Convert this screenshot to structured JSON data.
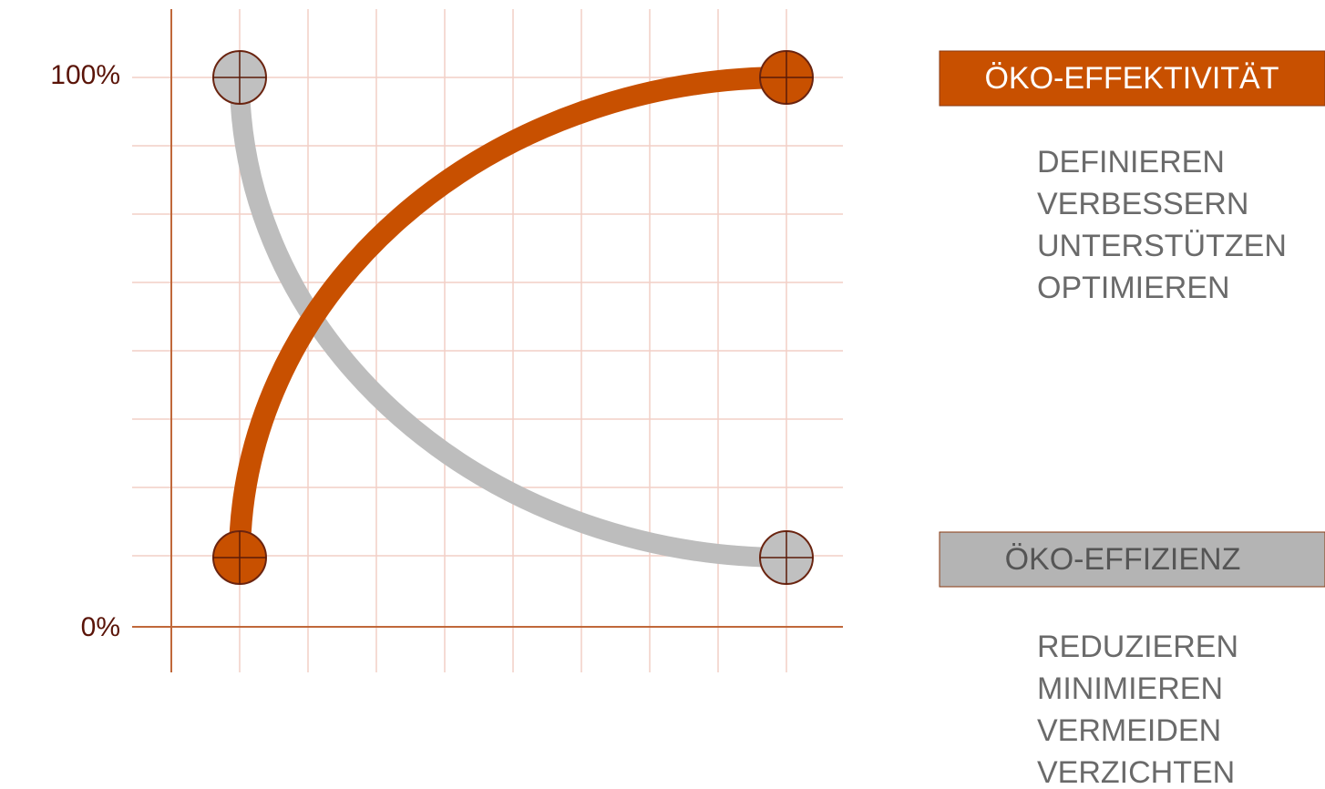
{
  "axis": {
    "top": "100%",
    "bottom": "0%"
  },
  "groups": [
    {
      "title": "ÖKO-EFFEKTIVITÄT",
      "items": [
        "DEFINIEREN",
        "VERBESSERN",
        "UNTERSTÜTZEN",
        "OPTIMIEREN"
      ]
    },
    {
      "title": "ÖKO-EFFIZIENZ",
      "items": [
        "REDUZIEREN",
        "MINIMIEREN",
        "VERMEIDEN",
        "VERZICHTEN"
      ]
    }
  ]
}
